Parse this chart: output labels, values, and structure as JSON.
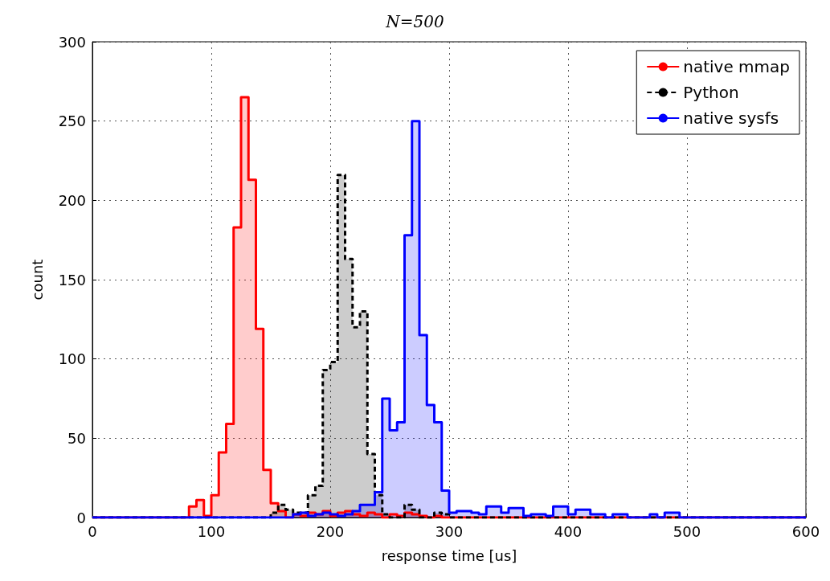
{
  "chart_data": {
    "type": "histogram",
    "title": "N=500",
    "xlabel": "response time [us]",
    "ylabel": "count",
    "bins": [
      0,
      6.25,
      12.5,
      18.75,
      25,
      31.25,
      37.5,
      43.75,
      50,
      56.25,
      62.5,
      68.75,
      75,
      81.25,
      87.5,
      93.75,
      100,
      106.25,
      112.5,
      118.75,
      125,
      131.25,
      137.5,
      143.75,
      150,
      156.25,
      162.5,
      168.75,
      175,
      181.25,
      187.5,
      193.75,
      200,
      206.25,
      212.5,
      218.75,
      225,
      231.25,
      237.5,
      243.75,
      250,
      256.25,
      262.5,
      268.75,
      275,
      281.25,
      287.5,
      293.75,
      300,
      306.25,
      312.5,
      318.75,
      325,
      331.25,
      337.5,
      343.75,
      350,
      356.25,
      362.5,
      368.75,
      375,
      381.25,
      387.5,
      393.75,
      400,
      406.25,
      412.5,
      418.75,
      425,
      431.25,
      437.5,
      443.75,
      450,
      456.25,
      462.5,
      468.75,
      475,
      481.25,
      487.5,
      493.75,
      500,
      506.25,
      512.5,
      518.75,
      525,
      531.25,
      537.5,
      543.75,
      550,
      556.25,
      562.5,
      568.75,
      575,
      581.25,
      587.5,
      593.75,
      600
    ],
    "series": [
      {
        "name": "native mmap",
        "color": "#ff0000",
        "line_style": "solid",
        "values": [
          0,
          0,
          0,
          0,
          0,
          0,
          0,
          0,
          0,
          0,
          0,
          0,
          0,
          7,
          11,
          1,
          14,
          41,
          59,
          183,
          265,
          213,
          119,
          30,
          9,
          4,
          0,
          2,
          1,
          3,
          2,
          4,
          1,
          3,
          4,
          2,
          1,
          3,
          2,
          0,
          2,
          1,
          3,
          2,
          1,
          0,
          1,
          0,
          0,
          0,
          0,
          0,
          0,
          0,
          0,
          0,
          0,
          0,
          0,
          0,
          0,
          0,
          0,
          0,
          0,
          0,
          0,
          0,
          0,
          0,
          0,
          0,
          0,
          0,
          0,
          0,
          0,
          0,
          0,
          0,
          0,
          0,
          0,
          0,
          0,
          0,
          0,
          0,
          0,
          0,
          0,
          0,
          0,
          0,
          0,
          0
        ]
      },
      {
        "name": "Python",
        "color": "#000000",
        "line_style": "dashed",
        "values": [
          0,
          0,
          0,
          0,
          0,
          0,
          0,
          0,
          0,
          0,
          0,
          0,
          0,
          0,
          0,
          0,
          0,
          0,
          0,
          0,
          0,
          0,
          0,
          0,
          3,
          8,
          5,
          3,
          3,
          14,
          20,
          93,
          98,
          216,
          163,
          120,
          130,
          40,
          14,
          2,
          0,
          0,
          8,
          5,
          0,
          0,
          3,
          2,
          0,
          0,
          0,
          0,
          0,
          0,
          0,
          0,
          0,
          0,
          0,
          0,
          0,
          0,
          0,
          0,
          0,
          0,
          0,
          0,
          0,
          0,
          0,
          0,
          0,
          0,
          0,
          0,
          0,
          0,
          0,
          0,
          0,
          0,
          0,
          0,
          0,
          0,
          0,
          0,
          0,
          0,
          0,
          0,
          0,
          0,
          0,
          0
        ]
      },
      {
        "name": "native sysfs",
        "color": "#0000ff",
        "line_style": "solid",
        "values": [
          0,
          0,
          0,
          0,
          0,
          0,
          0,
          0,
          0,
          0,
          0,
          0,
          0,
          0,
          0,
          0,
          0,
          0,
          0,
          0,
          0,
          0,
          0,
          0,
          0,
          0,
          0,
          2,
          3,
          1,
          2,
          3,
          2,
          1,
          2,
          4,
          8,
          8,
          16,
          75,
          55,
          60,
          178,
          250,
          115,
          71,
          60,
          17,
          3,
          4,
          4,
          3,
          2,
          7,
          7,
          3,
          6,
          6,
          1,
          2,
          2,
          1,
          7,
          7,
          2,
          5,
          5,
          2,
          2,
          0,
          2,
          2,
          0,
          0,
          0,
          2,
          0,
          3,
          3,
          0,
          0,
          0,
          0,
          0,
          0,
          0,
          0,
          0,
          0,
          0,
          0,
          0,
          0,
          0,
          0,
          0
        ]
      }
    ],
    "xlim": [
      0,
      600
    ],
    "xticks": [
      0,
      100,
      200,
      300,
      400,
      500,
      600
    ],
    "ylim": [
      0,
      300
    ],
    "yticks": [
      0,
      50,
      100,
      150,
      200,
      250,
      300
    ],
    "grid": true,
    "legend": "top right"
  }
}
